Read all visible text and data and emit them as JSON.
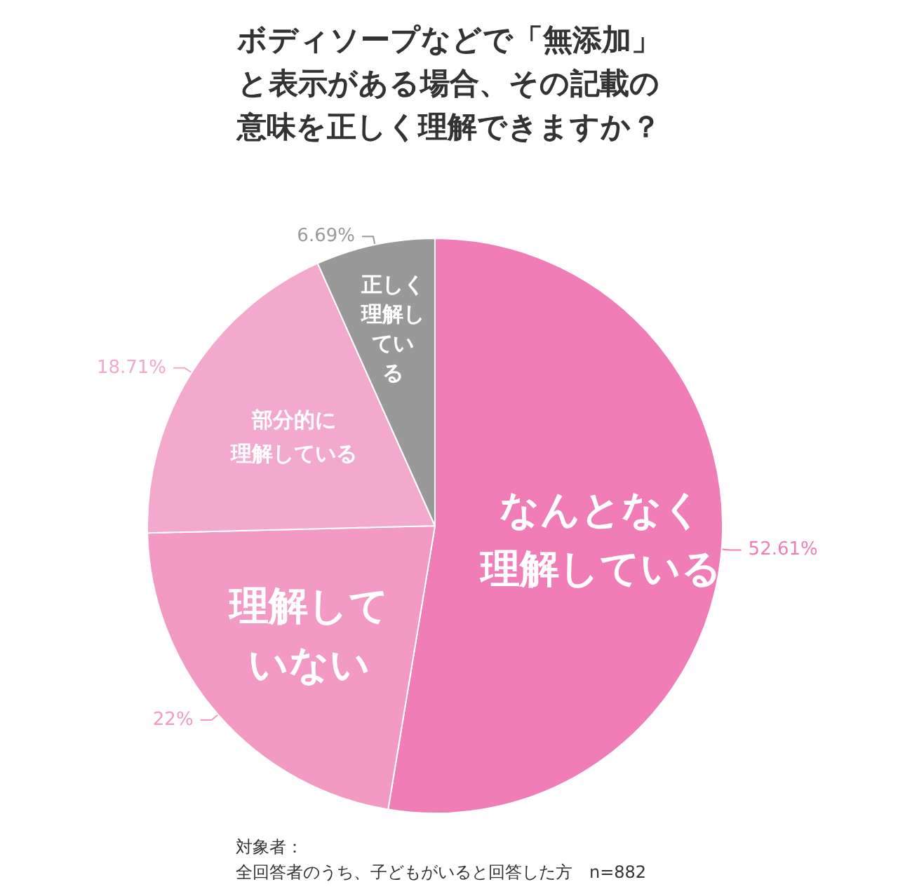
{
  "chart_data": {
    "type": "pie",
    "title": "ボディソープなどで「無添加」と表示がある場合、その記載の意味を正しく理解できますか？",
    "categories": [
      "なんとなく理解している",
      "理解していない",
      "部分的に理解している",
      "正しく理解している"
    ],
    "values": [
      52.61,
      22,
      18.71,
      6.69
    ],
    "colors": [
      "#f07db6",
      "#f29ac4",
      "#f2a9cd",
      "#999999"
    ],
    "value_labels": [
      "52.61%",
      "22%",
      "18.71%",
      "6.69%"
    ],
    "annotations": [
      "対象者：",
      "全回答者のうち、子どもがいると回答した方　n=882"
    ]
  }
}
